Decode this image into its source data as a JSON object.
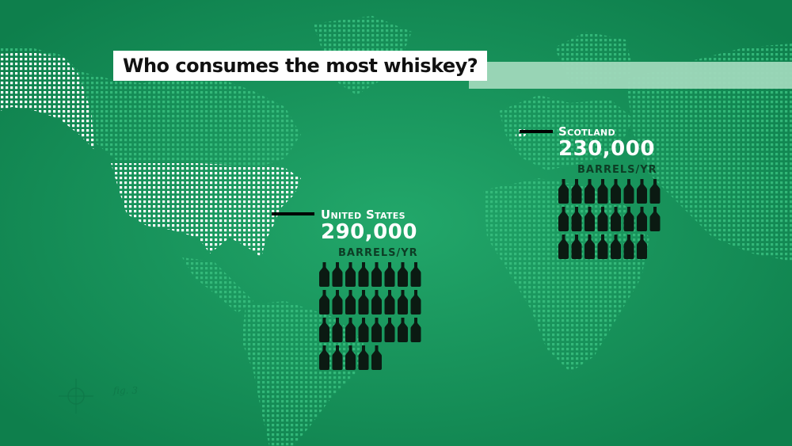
{
  "title": "Who consumes the most whiskey?",
  "colors": {
    "background": "#14995f",
    "map_dots": "#2cb877",
    "usa_dots": "#ffffff",
    "bottle": "#0b1a12",
    "title_strip": "#9fd8bb"
  },
  "regions": [
    {
      "id": "usa",
      "country": "United States",
      "value": "290,000",
      "unit": "BARRELS/YR",
      "bottle_count": 29,
      "barrels_per_year": 290000
    },
    {
      "id": "scotland",
      "country": "Scotland",
      "value": "230,000",
      "unit": "BARRELS/YR",
      "bottle_count": 23,
      "barrels_per_year": 230000
    }
  ],
  "figure_label": "fig. 3",
  "icons": [
    "whiskey-bottle-icon",
    "crosshair-icon"
  ]
}
